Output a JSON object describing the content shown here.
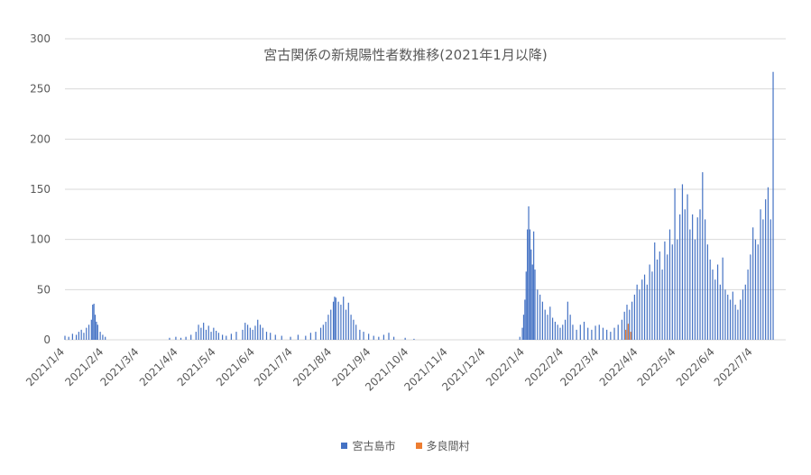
{
  "chart_data": {
    "type": "bar",
    "title": "宮古関係の新規陽性者数推移(2021年1月以降)",
    "xlabel": "",
    "ylabel": "",
    "ylim": [
      0,
      300
    ],
    "y_ticks": [
      "0",
      "50",
      "100",
      "150",
      "200",
      "250",
      "300"
    ],
    "x_start": "2021-01-04",
    "x_end": "2022-07-30",
    "x_tick_labels": [
      "2021/1/4",
      "2021/2/4",
      "2021/3/4",
      "2021/4/4",
      "2021/5/4",
      "2021/6/4",
      "2021/7/4",
      "2021/8/4",
      "2021/9/4",
      "2021/10/4",
      "2021/11/4",
      "2021/12/4",
      "2022/1/4",
      "2022/2/4",
      "2022/3/4",
      "2022/4/4",
      "2022/5/4",
      "2022/6/4",
      "2022/7/4"
    ],
    "grid": true,
    "legend_position": "bottom",
    "series": [
      {
        "name": "宮古島市",
        "color": "#4472C4",
        "points": [
          [
            "2021-01-04",
            4
          ],
          [
            "2021-01-07",
            3
          ],
          [
            "2021-01-10",
            6
          ],
          [
            "2021-01-13",
            5
          ],
          [
            "2021-01-15",
            8
          ],
          [
            "2021-01-17",
            10
          ],
          [
            "2021-01-19",
            7
          ],
          [
            "2021-01-21",
            12
          ],
          [
            "2021-01-23",
            15
          ],
          [
            "2021-01-25",
            20
          ],
          [
            "2021-01-26",
            35
          ],
          [
            "2021-01-27",
            36
          ],
          [
            "2021-01-28",
            25
          ],
          [
            "2021-01-29",
            18
          ],
          [
            "2021-01-30",
            15
          ],
          [
            "2021-02-01",
            8
          ],
          [
            "2021-02-03",
            5
          ],
          [
            "2021-02-05",
            3
          ],
          [
            "2021-03-28",
            2
          ],
          [
            "2021-04-02",
            3
          ],
          [
            "2021-04-06",
            2
          ],
          [
            "2021-04-10",
            3
          ],
          [
            "2021-04-14",
            5
          ],
          [
            "2021-04-18",
            8
          ],
          [
            "2021-04-20",
            15
          ],
          [
            "2021-04-22",
            12
          ],
          [
            "2021-04-24",
            17
          ],
          [
            "2021-04-26",
            10
          ],
          [
            "2021-04-28",
            14
          ],
          [
            "2021-04-30",
            8
          ],
          [
            "2021-05-02",
            12
          ],
          [
            "2021-05-04",
            9
          ],
          [
            "2021-05-06",
            7
          ],
          [
            "2021-05-09",
            5
          ],
          [
            "2021-05-12",
            4
          ],
          [
            "2021-05-16",
            6
          ],
          [
            "2021-05-20",
            8
          ],
          [
            "2021-05-25",
            10
          ],
          [
            "2021-05-27",
            17
          ],
          [
            "2021-05-29",
            15
          ],
          [
            "2021-05-31",
            12
          ],
          [
            "2021-06-02",
            10
          ],
          [
            "2021-06-04",
            14
          ],
          [
            "2021-06-06",
            20
          ],
          [
            "2021-06-08",
            15
          ],
          [
            "2021-06-10",
            12
          ],
          [
            "2021-06-13",
            8
          ],
          [
            "2021-06-16",
            7
          ],
          [
            "2021-06-20",
            5
          ],
          [
            "2021-06-25",
            4
          ],
          [
            "2021-07-02",
            3
          ],
          [
            "2021-07-08",
            5
          ],
          [
            "2021-07-14",
            4
          ],
          [
            "2021-07-18",
            7
          ],
          [
            "2021-07-22",
            8
          ],
          [
            "2021-07-26",
            12
          ],
          [
            "2021-07-28",
            15
          ],
          [
            "2021-07-30",
            18
          ],
          [
            "2021-08-01",
            25
          ],
          [
            "2021-08-03",
            30
          ],
          [
            "2021-08-05",
            38
          ],
          [
            "2021-08-06",
            43
          ],
          [
            "2021-08-07",
            42
          ],
          [
            "2021-08-09",
            38
          ],
          [
            "2021-08-11",
            35
          ],
          [
            "2021-08-13",
            43
          ],
          [
            "2021-08-15",
            30
          ],
          [
            "2021-08-17",
            37
          ],
          [
            "2021-08-19",
            25
          ],
          [
            "2021-08-21",
            20
          ],
          [
            "2021-08-23",
            15
          ],
          [
            "2021-08-26",
            10
          ],
          [
            "2021-08-29",
            8
          ],
          [
            "2021-09-02",
            6
          ],
          [
            "2021-09-06",
            4
          ],
          [
            "2021-09-10",
            3
          ],
          [
            "2021-09-14",
            5
          ],
          [
            "2021-09-18",
            7
          ],
          [
            "2021-09-22",
            3
          ],
          [
            "2021-10-01",
            2
          ],
          [
            "2021-10-08",
            1
          ],
          [
            "2021-12-31",
            3
          ],
          [
            "2022-01-02",
            12
          ],
          [
            "2022-01-03",
            25
          ],
          [
            "2022-01-04",
            40
          ],
          [
            "2022-01-05",
            68
          ],
          [
            "2022-01-06",
            110
          ],
          [
            "2022-01-07",
            133
          ],
          [
            "2022-01-08",
            110
          ],
          [
            "2022-01-09",
            90
          ],
          [
            "2022-01-10",
            75
          ],
          [
            "2022-01-11",
            108
          ],
          [
            "2022-01-12",
            70
          ],
          [
            "2022-01-14",
            50
          ],
          [
            "2022-01-16",
            45
          ],
          [
            "2022-01-18",
            38
          ],
          [
            "2022-01-20",
            30
          ],
          [
            "2022-01-22",
            25
          ],
          [
            "2022-01-24",
            33
          ],
          [
            "2022-01-26",
            22
          ],
          [
            "2022-01-28",
            18
          ],
          [
            "2022-01-30",
            15
          ],
          [
            "2022-02-01",
            12
          ],
          [
            "2022-02-03",
            15
          ],
          [
            "2022-02-05",
            20
          ],
          [
            "2022-02-07",
            38
          ],
          [
            "2022-02-09",
            25
          ],
          [
            "2022-02-11",
            15
          ],
          [
            "2022-02-14",
            10
          ],
          [
            "2022-02-17",
            15
          ],
          [
            "2022-02-20",
            18
          ],
          [
            "2022-02-23",
            12
          ],
          [
            "2022-02-26",
            10
          ],
          [
            "2022-03-01",
            14
          ],
          [
            "2022-03-04",
            15
          ],
          [
            "2022-03-07",
            12
          ],
          [
            "2022-03-10",
            10
          ],
          [
            "2022-03-13",
            8
          ],
          [
            "2022-03-16",
            12
          ],
          [
            "2022-03-19",
            15
          ],
          [
            "2022-03-22",
            20
          ],
          [
            "2022-03-24",
            28
          ],
          [
            "2022-03-26",
            35
          ],
          [
            "2022-03-28",
            30
          ],
          [
            "2022-03-30",
            38
          ],
          [
            "2022-04-01",
            45
          ],
          [
            "2022-04-03",
            55
          ],
          [
            "2022-04-05",
            50
          ],
          [
            "2022-04-07",
            60
          ],
          [
            "2022-04-09",
            65
          ],
          [
            "2022-04-11",
            55
          ],
          [
            "2022-04-13",
            75
          ],
          [
            "2022-04-15",
            68
          ],
          [
            "2022-04-17",
            97
          ],
          [
            "2022-04-19",
            80
          ],
          [
            "2022-04-21",
            88
          ],
          [
            "2022-04-23",
            70
          ],
          [
            "2022-04-25",
            98
          ],
          [
            "2022-04-27",
            85
          ],
          [
            "2022-04-29",
            110
          ],
          [
            "2022-05-01",
            95
          ],
          [
            "2022-05-03",
            151
          ],
          [
            "2022-05-05",
            100
          ],
          [
            "2022-05-07",
            125
          ],
          [
            "2022-05-09",
            155
          ],
          [
            "2022-05-11",
            130
          ],
          [
            "2022-05-13",
            145
          ],
          [
            "2022-05-15",
            110
          ],
          [
            "2022-05-17",
            125
          ],
          [
            "2022-05-19",
            100
          ],
          [
            "2022-05-21",
            122
          ],
          [
            "2022-05-23",
            130
          ],
          [
            "2022-05-25",
            167
          ],
          [
            "2022-05-27",
            120
          ],
          [
            "2022-05-29",
            95
          ],
          [
            "2022-05-31",
            80
          ],
          [
            "2022-06-02",
            70
          ],
          [
            "2022-06-04",
            60
          ],
          [
            "2022-06-06",
            75
          ],
          [
            "2022-06-08",
            55
          ],
          [
            "2022-06-10",
            82
          ],
          [
            "2022-06-12",
            50
          ],
          [
            "2022-06-14",
            45
          ],
          [
            "2022-06-16",
            40
          ],
          [
            "2022-06-18",
            48
          ],
          [
            "2022-06-20",
            35
          ],
          [
            "2022-06-22",
            30
          ],
          [
            "2022-06-24",
            40
          ],
          [
            "2022-06-26",
            50
          ],
          [
            "2022-06-28",
            55
          ],
          [
            "2022-06-30",
            70
          ],
          [
            "2022-07-02",
            85
          ],
          [
            "2022-07-04",
            112
          ],
          [
            "2022-07-06",
            100
          ],
          [
            "2022-07-08",
            95
          ],
          [
            "2022-07-10",
            130
          ],
          [
            "2022-07-12",
            120
          ],
          [
            "2022-07-14",
            140
          ],
          [
            "2022-07-16",
            152
          ],
          [
            "2022-07-18",
            120
          ],
          [
            "2022-07-20",
            267
          ]
        ]
      },
      {
        "name": "多良間村",
        "color": "#ED7D31",
        "points": [
          [
            "2022-03-25",
            10
          ],
          [
            "2022-03-27",
            16
          ],
          [
            "2022-03-29",
            8
          ]
        ]
      }
    ]
  }
}
